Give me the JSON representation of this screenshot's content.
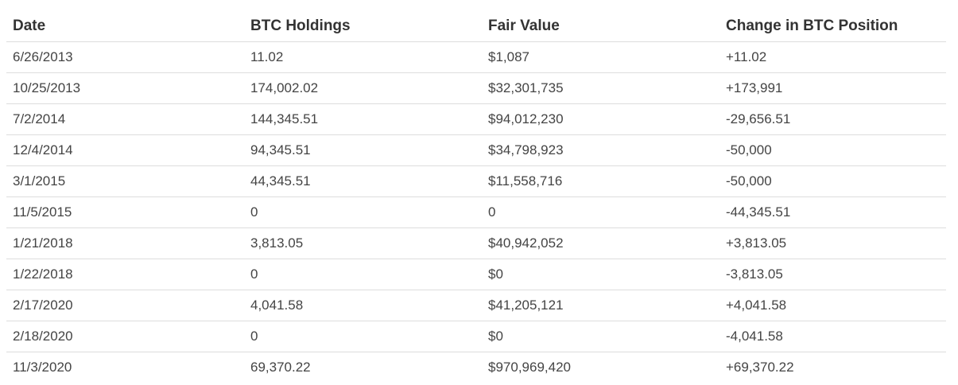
{
  "table": {
    "headers": [
      "Date",
      "BTC Holdings",
      "Fair Value",
      "Change in BTC Position"
    ],
    "rows": [
      [
        "6/26/2013",
        "11.02",
        "$1,087",
        "+11.02"
      ],
      [
        "10/25/2013",
        "174,002.02",
        "$32,301,735",
        "+173,991"
      ],
      [
        "7/2/2014",
        "144,345.51",
        "$94,012,230",
        "-29,656.51"
      ],
      [
        "12/4/2014",
        "94,345.51",
        "$34,798,923",
        "-50,000"
      ],
      [
        "3/1/2015",
        "44,345.51",
        "$11,558,716",
        "-50,000"
      ],
      [
        "11/5/2015",
        "0",
        "0",
        "-44,345.51"
      ],
      [
        "1/21/2018",
        "3,813.05",
        "$40,942,052",
        "+3,813.05"
      ],
      [
        "1/22/2018",
        "0",
        "$0",
        "-3,813.05"
      ],
      [
        "2/17/2020",
        "4,041.58",
        "$41,205,121",
        "+4,041.58"
      ],
      [
        "2/18/2020",
        "0",
        "$0",
        "-4,041.58"
      ],
      [
        "11/3/2020",
        "69,370.22",
        "$970,969,420",
        "+69,370.22"
      ]
    ]
  }
}
